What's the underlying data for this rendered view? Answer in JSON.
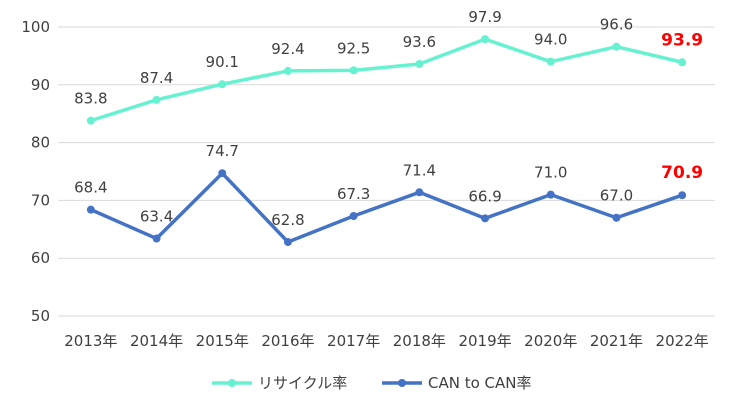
{
  "chart_data": {
    "type": "line",
    "categories": [
      "2013年",
      "2014年",
      "2015年",
      "2016年",
      "2017年",
      "2018年",
      "2019年",
      "2020年",
      "2021年",
      "2022年"
    ],
    "ylim": [
      50,
      100
    ],
    "yticks": [
      50,
      60,
      70,
      80,
      90,
      100
    ],
    "grid": true,
    "legend_position": "bottom",
    "highlight_last_color": "#ff0000",
    "series": [
      {
        "name": "リサイクル率",
        "color": "#66f2d0",
        "values": [
          83.8,
          87.4,
          90.1,
          92.4,
          92.5,
          93.6,
          97.9,
          94.0,
          96.6,
          93.9
        ],
        "labels": [
          "83.8",
          "87.4",
          "90.1",
          "92.4",
          "92.5",
          "93.6",
          "97.9",
          "94.0",
          "96.6",
          "93.9"
        ]
      },
      {
        "name": "CAN to CAN率",
        "color": "#4472c4",
        "values": [
          68.4,
          63.4,
          74.7,
          62.8,
          67.3,
          71.4,
          66.9,
          71.0,
          67.0,
          70.9
        ],
        "labels": [
          "68.4",
          "63.4",
          "74.7",
          "62.8",
          "67.3",
          "71.4",
          "66.9",
          "71.0",
          "67.0",
          "70.9"
        ]
      }
    ]
  }
}
